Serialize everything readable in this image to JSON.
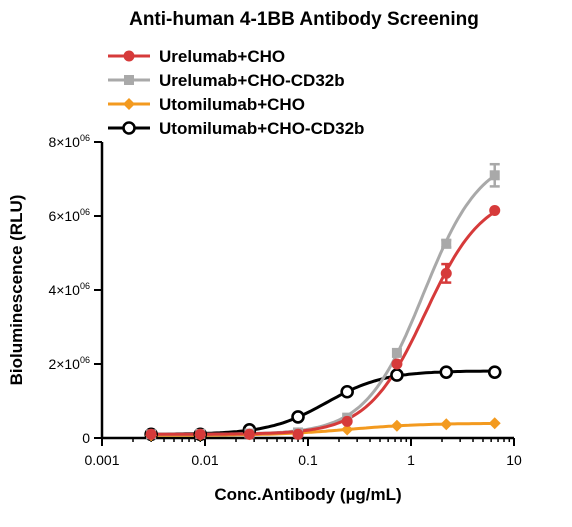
{
  "chart_data": {
    "type": "line",
    "title": "Anti-human 4-1BB Antibody Screening",
    "xlabel": "Conc.Antibody (µg/mL)",
    "ylabel": "Bioluminescence (RLU)",
    "x_scale": "log",
    "xlim": [
      0.001,
      10
    ],
    "ylim": [
      0,
      8000000
    ],
    "x_ticks": [
      0.001,
      0.01,
      0.1,
      1,
      10
    ],
    "x_tick_labels": [
      "0.001",
      "0.01",
      "0.1",
      "1",
      "10"
    ],
    "y_ticks": [
      0,
      2000000,
      4000000,
      6000000,
      8000000
    ],
    "y_tick_labels": [
      {
        "mant": "0",
        "exp": ""
      },
      {
        "mant": "2×10",
        "exp": "06"
      },
      {
        "mant": "4×10",
        "exp": "06"
      },
      {
        "mant": "6×10",
        "exp": "06"
      },
      {
        "mant": "8×10",
        "exp": "06"
      }
    ],
    "grid": false,
    "legend_position": "top-left",
    "series": [
      {
        "name": "Urelumab+CHO",
        "color": "#d63a3a",
        "marker": "circle-filled",
        "x": [
          0.003,
          0.009,
          0.027,
          0.08,
          0.24,
          0.73,
          2.2,
          6.5
        ],
        "y": [
          100000,
          100000,
          100000,
          100000,
          450000,
          2000000,
          4450000,
          6150000
        ],
        "err": [
          0,
          0,
          0,
          0,
          0,
          0,
          250000,
          0
        ]
      },
      {
        "name": "Urelumab+CHO-CD32b",
        "color": "#a9a9a9",
        "marker": "square-filled",
        "x": [
          0.003,
          0.009,
          0.027,
          0.08,
          0.24,
          0.73,
          2.2,
          6.5
        ],
        "y": [
          100000,
          110000,
          120000,
          150000,
          550000,
          2300000,
          5250000,
          7100000
        ],
        "err": [
          0,
          0,
          0,
          0,
          0,
          0,
          100000,
          300000
        ]
      },
      {
        "name": "Utomilumab+CHO",
        "color": "#f39a1f",
        "marker": "diamond-filled",
        "x": [
          0.003,
          0.009,
          0.027,
          0.08,
          0.24,
          0.73,
          2.2,
          6.5
        ],
        "y": [
          70000,
          80000,
          100000,
          130000,
          230000,
          330000,
          370000,
          400000
        ],
        "err": [
          0,
          0,
          0,
          0,
          0,
          0,
          0,
          0
        ]
      },
      {
        "name": "Utomilumab+CHO-CD32b",
        "color": "#000000",
        "marker": "circle-open",
        "x": [
          0.003,
          0.009,
          0.027,
          0.08,
          0.24,
          0.73,
          2.2,
          6.5
        ],
        "y": [
          100000,
          100000,
          220000,
          570000,
          1250000,
          1700000,
          1780000,
          1780000
        ],
        "err": [
          0,
          0,
          0,
          0,
          0,
          0,
          0,
          0
        ]
      }
    ]
  }
}
